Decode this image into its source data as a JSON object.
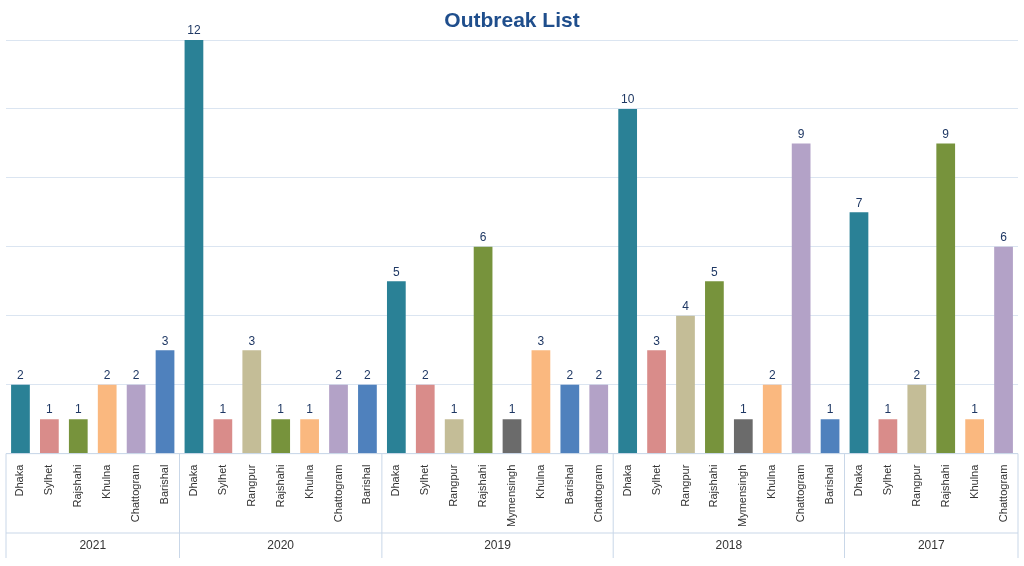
{
  "chart_data": {
    "type": "bar",
    "title": "Outbreak List",
    "categories": [
      "Dhaka",
      "Sylhet",
      "Rajshahi",
      "Khulna",
      "Chattogram",
      "Barishal",
      "Dhaka",
      "Sylhet",
      "Rangpur",
      "Rajshahi",
      "Khulna",
      "Chattogram",
      "Barishal",
      "Dhaka",
      "Sylhet",
      "Rangpur",
      "Rajshahi",
      "Mymensingh",
      "Khulna",
      "Barishal",
      "Chattogram",
      "Dhaka",
      "Sylhet",
      "Rangpur",
      "Rajshahi",
      "Mymensingh",
      "Khulna",
      "Chattogram",
      "Barishal",
      "Dhaka",
      "Sylhet",
      "Rangpur",
      "Rajshahi",
      "Khulna",
      "Chattogram"
    ],
    "values": [
      2,
      1,
      1,
      2,
      2,
      3,
      12,
      1,
      3,
      1,
      1,
      2,
      2,
      5,
      2,
      1,
      6,
      1,
      3,
      2,
      2,
      10,
      3,
      4,
      5,
      1,
      2,
      9,
      1,
      7,
      1,
      2,
      9,
      1,
      6
    ],
    "colors": [
      "#2a8196",
      "#d98c8a",
      "#77933c",
      "#fab87f",
      "#b3a2c7",
      "#4f81bd",
      "#2a8196",
      "#d98c8a",
      "#c4bd97",
      "#77933c",
      "#fab87f",
      "#b3a2c7",
      "#4f81bd",
      "#2a8196",
      "#d98c8a",
      "#c4bd97",
      "#77933c",
      "#6b6b6b",
      "#fab87f",
      "#4f81bd",
      "#b3a2c7",
      "#2a8196",
      "#d98c8a",
      "#c4bd97",
      "#77933c",
      "#6b6b6b",
      "#fab87f",
      "#b3a2c7",
      "#4f81bd",
      "#2a8196",
      "#d98c8a",
      "#c4bd97",
      "#77933c",
      "#fab87f",
      "#b3a2c7"
    ],
    "annotations": [
      "2021",
      "2020",
      "2019",
      "2018",
      "2017"
    ],
    "ylim": [
      0,
      12
    ],
    "yticks": [
      {
        "value": 0,
        "label": null
      },
      {
        "value": 2,
        "label": null
      },
      {
        "value": 4,
        "label": null
      },
      {
        "value": 6,
        "label": null
      },
      {
        "value": 8,
        "label": null
      },
      {
        "value": 10,
        "label": null
      },
      {
        "value": 12,
        "label": null
      }
    ],
    "grid": "y",
    "tick_labels": "x",
    "data_labels": true,
    "legend": false
  }
}
